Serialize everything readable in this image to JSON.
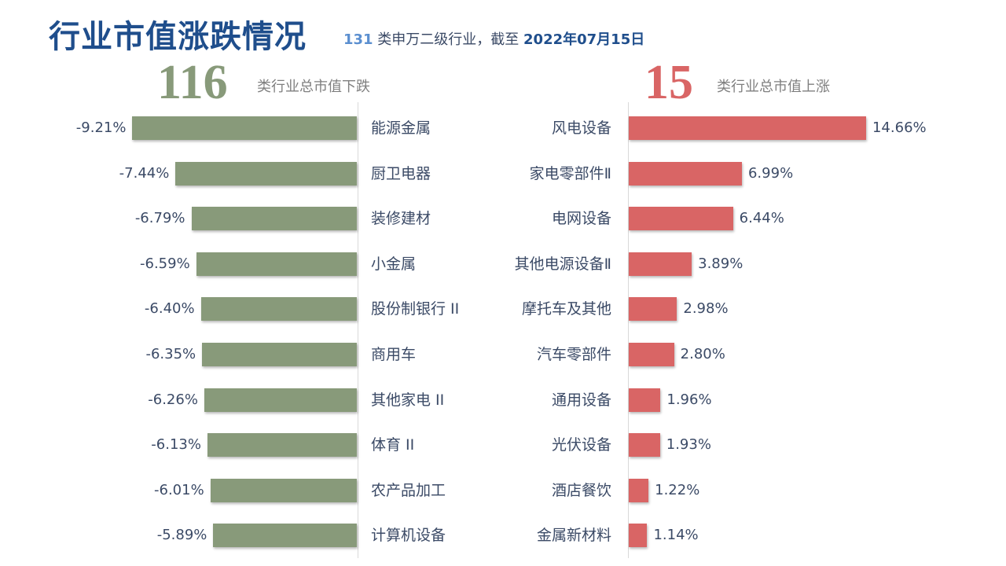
{
  "header": {
    "title": "行业市值涨跌情况",
    "subtitle_count": "131",
    "subtitle_mid": " 类申万二级行业，截至 ",
    "subtitle_date": "2022年07月15日"
  },
  "summary": {
    "down_count": "116",
    "down_label": "类行业总市值下跌",
    "up_count": "15",
    "up_label": "类行业总市值上涨"
  },
  "colors": {
    "down": "#889a7a",
    "up": "#d96565",
    "title": "#1f4e8c"
  },
  "chart_data": [
    {
      "type": "bar",
      "orientation": "horizontal",
      "categories": [
        "能源金属",
        "厨卫电器",
        "装修建材",
        "小金属",
        "股份制银行 II",
        "商用车",
        "其他家电 II",
        "体育 II",
        "农产品加工",
        "计算机设备"
      ],
      "values": [
        -9.21,
        -7.44,
        -6.79,
        -6.59,
        -6.4,
        -6.35,
        -6.26,
        -6.13,
        -6.01,
        -5.89
      ],
      "labels": [
        "-9.21%",
        "-7.44%",
        "-6.79%",
        "-6.59%",
        "-6.40%",
        "-6.35%",
        "-6.26%",
        "-6.13%",
        "-6.01%",
        "-5.89%"
      ],
      "unit": "%"
    },
    {
      "type": "bar",
      "orientation": "horizontal",
      "categories": [
        "风电设备",
        "家电零部件Ⅱ",
        "电网设备",
        "其他电源设备Ⅱ",
        "摩托车及其他",
        "汽车零部件",
        "通用设备",
        "光伏设备",
        "酒店餐饮",
        "金属新材料"
      ],
      "values": [
        14.66,
        6.99,
        6.44,
        3.89,
        2.98,
        2.8,
        1.96,
        1.93,
        1.22,
        1.14
      ],
      "labels": [
        "14.66%",
        "6.99%",
        "6.44%",
        "3.89%",
        "2.98%",
        "2.80%",
        "1.96%",
        "1.93%",
        "1.22%",
        "1.14%"
      ],
      "unit": "%"
    }
  ]
}
